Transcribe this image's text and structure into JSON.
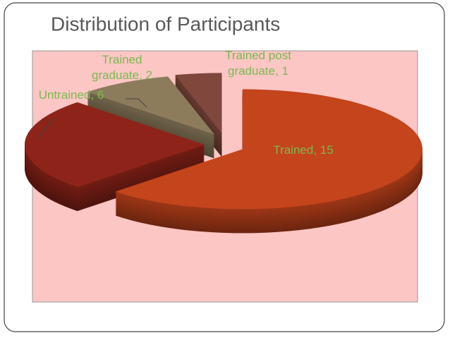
{
  "chart_data": {
    "type": "pie3d",
    "title": "Distribution of Participants",
    "values": [
      15,
      6,
      2,
      1
    ],
    "value_labels": [
      "Trained, 15",
      "Untrained, 6",
      "Trained graduate, 2",
      "Trained post graduate, 1"
    ],
    "colors": [
      "#c4441c",
      "#8e2419",
      "#8c7c5c",
      "#80483c"
    ],
    "label_color": "#7cb950"
  }
}
